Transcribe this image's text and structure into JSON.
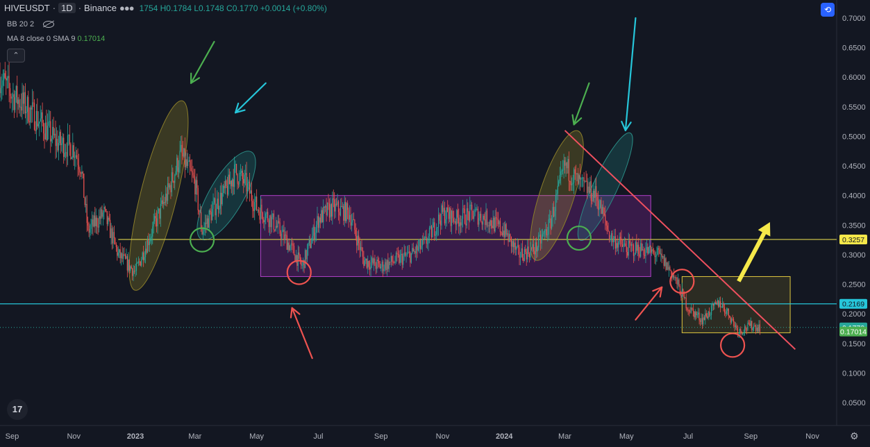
{
  "header": {
    "symbol": "HIVEUSDT",
    "separator": "·",
    "timeframe": "1D",
    "exchange": "Binance",
    "ohlc": "1754 H0.1784 L0.1748 C0.1770 +0.0014 (+0.80%)"
  },
  "indicators": [
    {
      "label": "BB 20 2",
      "value": ""
    },
    {
      "label": "MA 8 close 0 SMA 9",
      "value": "0.17014"
    }
  ],
  "ui": {
    "collapse_icon": "chevron-up-icon",
    "collapse_glyph": "⌃",
    "logo_text": "17",
    "compare_glyph": "⟲",
    "gear_glyph": "⚙"
  },
  "chart_data": {
    "type": "candlestick",
    "title": "",
    "xlabel": "",
    "ylabel": "",
    "x_ticks": [
      "Sep",
      "Nov",
      "2023",
      "Mar",
      "May",
      "Jul",
      "Sep",
      "Nov",
      "2024",
      "Mar",
      "May",
      "Jul",
      "Sep",
      "Nov"
    ],
    "y_ticks": [
      "0.7000",
      "0.6500",
      "0.6000",
      "0.5500",
      "0.5000",
      "0.4500",
      "0.4000",
      "0.3500",
      "0.3000",
      "0.2500",
      "0.2000",
      "0.1500",
      "0.1000",
      "0.0500"
    ],
    "ylim": [
      0.03,
      0.72
    ],
    "price_labels": [
      {
        "value": 0.3257,
        "text": "0.3257",
        "color": "#f5e84a",
        "text_color": "#131722"
      },
      {
        "value": 0.2169,
        "text": "0.2169",
        "color": "#26c6da",
        "text_color": "#131722"
      },
      {
        "value": 0.177,
        "text": "0.1770",
        "color": "#26a69a",
        "text_color": "#ffffff"
      },
      {
        "value": 0.17014,
        "text": "0.17014",
        "color": "#4caf50",
        "text_color": "#ffffff"
      }
    ],
    "horizontal_lines": [
      {
        "value": 0.3257,
        "color": "#c8c04a"
      },
      {
        "value": 0.2169,
        "color": "#26c6da"
      }
    ],
    "price_path": [
      [
        "2022-08-20",
        0.6
      ],
      [
        "2022-09-01",
        0.57
      ],
      [
        "2022-09-15",
        0.55
      ],
      [
        "2022-10-01",
        0.52
      ],
      [
        "2022-10-15",
        0.49
      ],
      [
        "2022-11-01",
        0.48
      ],
      [
        "2022-11-08",
        0.45
      ],
      [
        "2022-11-15",
        0.34
      ],
      [
        "2022-12-01",
        0.37
      ],
      [
        "2022-12-15",
        0.3
      ],
      [
        "2023-01-01",
        0.27
      ],
      [
        "2023-01-15",
        0.33
      ],
      [
        "2023-02-01",
        0.4
      ],
      [
        "2023-02-15",
        0.47
      ],
      [
        "2023-03-01",
        0.42
      ],
      [
        "2023-03-08",
        0.34
      ],
      [
        "2023-03-20",
        0.38
      ],
      [
        "2023-04-01",
        0.41
      ],
      [
        "2023-04-10",
        0.44
      ],
      [
        "2023-04-20",
        0.42
      ],
      [
        "2023-05-01",
        0.38
      ],
      [
        "2023-05-15",
        0.36
      ],
      [
        "2023-06-01",
        0.32
      ],
      [
        "2023-06-15",
        0.28
      ],
      [
        "2023-07-01",
        0.36
      ],
      [
        "2023-07-15",
        0.38
      ],
      [
        "2023-08-01",
        0.37
      ],
      [
        "2023-08-15",
        0.29
      ],
      [
        "2023-09-01",
        0.28
      ],
      [
        "2023-09-15",
        0.29
      ],
      [
        "2023-10-01",
        0.3
      ],
      [
        "2023-10-15",
        0.32
      ],
      [
        "2023-11-01",
        0.37
      ],
      [
        "2023-11-15",
        0.36
      ],
      [
        "2023-12-01",
        0.37
      ],
      [
        "2023-12-15",
        0.36
      ],
      [
        "2024-01-01",
        0.34
      ],
      [
        "2024-01-15",
        0.3
      ],
      [
        "2024-02-01",
        0.31
      ],
      [
        "2024-02-15",
        0.35
      ],
      [
        "2024-03-01",
        0.45
      ],
      [
        "2024-03-15",
        0.42
      ],
      [
        "2024-04-01",
        0.4
      ],
      [
        "2024-04-15",
        0.33
      ],
      [
        "2024-05-01",
        0.31
      ],
      [
        "2024-05-15",
        0.31
      ],
      [
        "2024-06-01",
        0.3
      ],
      [
        "2024-06-15",
        0.27
      ],
      [
        "2024-07-01",
        0.21
      ],
      [
        "2024-07-15",
        0.19
      ],
      [
        "2024-08-01",
        0.22
      ],
      [
        "2024-08-10",
        0.2
      ],
      [
        "2024-08-20",
        0.17
      ],
      [
        "2024-09-01",
        0.18
      ],
      [
        "2024-09-10",
        0.177
      ]
    ],
    "annotations": {
      "rectangles": [
        {
          "x1": "2023-05-05",
          "x2": "2024-05-25",
          "y1": 0.263,
          "y2": 0.4,
          "fill": "rgba(156,39,176,0.28)",
          "stroke": "#b040c8"
        },
        {
          "x1": "2024-06-25",
          "x2": "2024-10-10",
          "y1": 0.168,
          "y2": 0.263,
          "fill": "rgba(200,180,40,0.14)",
          "stroke": "#e0c840"
        }
      ],
      "trendlines": [
        {
          "x1": "2024-03-01",
          "y1": 0.51,
          "x2": "2024-10-15",
          "y2": 0.14,
          "color": "#f0505f"
        },
        {
          "x1": "2022-12-15",
          "y1": 0.3257,
          "x2": "2024-12-15",
          "y2": 0.3257,
          "color": "#c8c04a"
        }
      ],
      "ellipses": [
        {
          "cx": "2023-01-24",
          "cy": 0.4,
          "rx_days": 18,
          "ry": 0.165,
          "angle": 14,
          "fill": "rgba(200,180,40,0.22)",
          "stroke": "#8a7d2a"
        },
        {
          "cx": "2023-04-01",
          "cy": 0.4,
          "rx_days": 17,
          "ry": 0.085,
          "angle": 30,
          "fill": "rgba(38,166,154,0.22)",
          "stroke": "#2a8a84"
        },
        {
          "cx": "2024-02-22",
          "cy": 0.4,
          "rx_days": 17,
          "ry": 0.115,
          "angle": 18,
          "fill": "rgba(200,180,40,0.22)",
          "stroke": "#8a7d2a"
        },
        {
          "cx": "2024-04-10",
          "cy": 0.415,
          "rx_days": 12,
          "ry": 0.1,
          "angle": 25,
          "fill": "rgba(38,166,154,0.22)",
          "stroke": "#2a8a84"
        }
      ],
      "circles": [
        {
          "x": "2023-03-08",
          "y": 0.325,
          "color": "#4caf50"
        },
        {
          "x": "2023-06-12",
          "y": 0.27,
          "color": "#ef5350"
        },
        {
          "x": "2024-03-15",
          "y": 0.328,
          "color": "#4caf50"
        },
        {
          "x": "2024-06-25",
          "y": 0.255,
          "color": "#ef5350"
        },
        {
          "x": "2024-08-14",
          "y": 0.147,
          "color": "#ef5350"
        }
      ],
      "arrows": [
        {
          "x1": "2023-03-20",
          "y1": 0.66,
          "x2": "2023-02-25",
          "y2": 0.59,
          "color": "#4caf50"
        },
        {
          "x1": "2023-05-10",
          "y1": 0.59,
          "x2": "2023-04-10",
          "y2": 0.54,
          "color": "#26c6da"
        },
        {
          "x1": "2024-03-25",
          "y1": 0.59,
          "x2": "2024-03-10",
          "y2": 0.52,
          "color": "#4caf50"
        },
        {
          "x1": "2024-05-10",
          "y1": 0.7,
          "x2": "2024-04-30",
          "y2": 0.51,
          "color": "#26c6da"
        },
        {
          "x1": "2023-06-25",
          "y1": 0.125,
          "x2": "2023-06-05",
          "y2": 0.21,
          "color": "#ef5350"
        },
        {
          "x1": "2024-05-10",
          "y1": 0.19,
          "x2": "2024-06-05",
          "y2": 0.245,
          "color": "#ef5350"
        },
        {
          "x1": "2024-08-20",
          "y1": 0.255,
          "x2": "2024-09-20",
          "y2": 0.355,
          "color": "#f5e84a"
        }
      ]
    }
  }
}
